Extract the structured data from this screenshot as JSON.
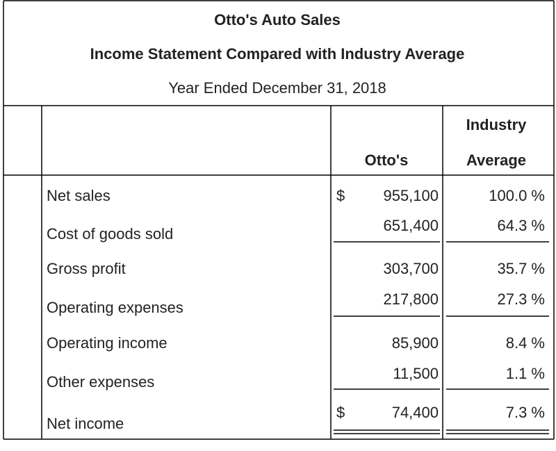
{
  "header": {
    "title": "Otto's Auto Sales",
    "subtitle": "Income Statement Compared with Industry Average",
    "period": "Year Ended December 31, 2018"
  },
  "columns": {
    "company": "Otto's",
    "industry": [
      "Industry",
      "Average"
    ]
  },
  "table": {
    "rows": [
      {
        "label": "Net sales",
        "currency": "$",
        "company": "955,100",
        "industry": "100.0 %"
      },
      {
        "label": "Cost of goods sold",
        "company": "651,400",
        "industry": "64.3 %"
      },
      {
        "label": "Gross profit",
        "company": "303,700",
        "industry": "35.7 %"
      },
      {
        "label": "Operating expenses",
        "company": "217,800",
        "industry": "27.3 %"
      },
      {
        "label": "Operating income",
        "company": "85,900",
        "industry": "8.4 %"
      },
      {
        "label": "Other expenses",
        "company": "11,500",
        "industry": "1.1 %"
      },
      {
        "label": "Net income",
        "currency": "$",
        "company": "74,400",
        "industry": "7.3 %"
      }
    ]
  }
}
